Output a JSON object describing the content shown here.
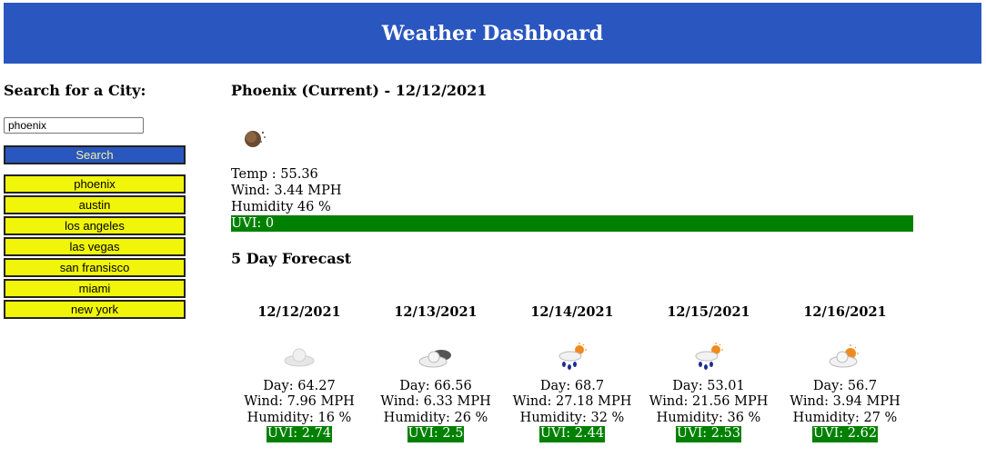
{
  "header": {
    "title": "Weather Dashboard"
  },
  "sidebar": {
    "heading": "Search for a City:",
    "search_value": "phoenix",
    "search_button": "Search",
    "history": [
      "phoenix",
      "austin",
      "los angeles",
      "las vegas",
      "san fransisco",
      "miami",
      "new york"
    ]
  },
  "current": {
    "title": "Phoenix (Current) - 12/12/2021",
    "icon": "clear-night-icon",
    "temp": "Temp : 55.36",
    "wind": "Wind: 3.44 MPH",
    "humidity": "Humidity 46 %",
    "uvi": "UVI: 0",
    "uvi_color": "#008000"
  },
  "forecast": {
    "title": "5 Day Forecast",
    "days": [
      {
        "date": "12/12/2021",
        "icon": "cloud-icon",
        "day": "Day: 64.27",
        "wind": "Wind: 7.96 MPH",
        "humidity": "Humidity: 16 %",
        "uvi": "UVI: 2.74"
      },
      {
        "date": "12/13/2021",
        "icon": "broken-clouds-icon",
        "day": "Day: 66.56",
        "wind": "Wind: 6.33 MPH",
        "humidity": "Humidity: 26 %",
        "uvi": "UVI: 2.5"
      },
      {
        "date": "12/14/2021",
        "icon": "sun-rain-icon",
        "day": "Day: 68.7",
        "wind": "Wind: 27.18 MPH",
        "humidity": "Humidity: 32 %",
        "uvi": "UVI: 2.44"
      },
      {
        "date": "12/15/2021",
        "icon": "sun-rain-icon",
        "day": "Day: 53.01",
        "wind": "Wind: 21.56 MPH",
        "humidity": "Humidity: 36 %",
        "uvi": "UVI: 2.53"
      },
      {
        "date": "12/16/2021",
        "icon": "partly-cloudy-icon",
        "day": "Day: 56.7",
        "wind": "Wind: 3.94 MPH",
        "humidity": "Humidity: 27 %",
        "uvi": "UVI: 2.62"
      }
    ]
  },
  "colors": {
    "header": "#2a56c0",
    "history_bg": "#f0f50a",
    "uvi_low": "#008000"
  }
}
